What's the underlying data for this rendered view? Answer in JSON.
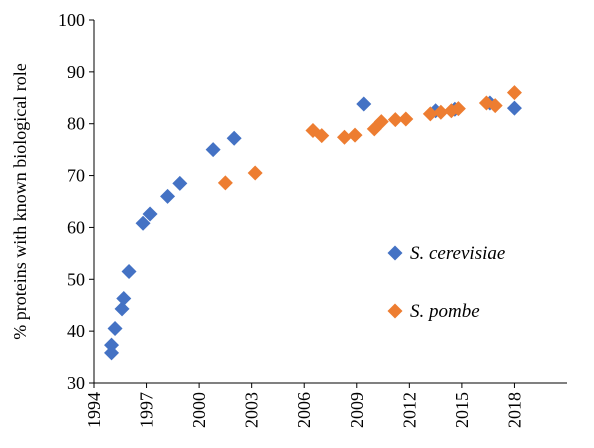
{
  "chart_data": {
    "type": "scatter",
    "title": "",
    "xlabel": "",
    "ylabel": "% proteins with known biological role",
    "xlim": [
      1994,
      2021
    ],
    "ylim": [
      30,
      100
    ],
    "x_ticks": [
      1994,
      1997,
      2000,
      2003,
      2006,
      2009,
      2012,
      2015,
      2018
    ],
    "x_tick_labels": [
      "1994",
      "1997",
      "2000",
      "2003",
      "2006",
      "2009",
      "2012",
      "2015",
      "2018"
    ],
    "y_ticks": [
      30,
      40,
      50,
      60,
      70,
      80,
      90,
      100
    ],
    "y_tick_labels": [
      "30",
      "40",
      "50",
      "60",
      "70",
      "80",
      "90",
      "100"
    ],
    "grid": false,
    "legend_position": "right",
    "series": [
      {
        "name": "S. cerevisiae",
        "color": "#4472c4",
        "marker": "diamond",
        "points": [
          {
            "x": 1995.0,
            "y": 35.8
          },
          {
            "x": 1995.0,
            "y": 37.3
          },
          {
            "x": 1995.2,
            "y": 40.5
          },
          {
            "x": 1995.6,
            "y": 44.3
          },
          {
            "x": 1995.7,
            "y": 46.3
          },
          {
            "x": 1996.0,
            "y": 51.5
          },
          {
            "x": 1996.8,
            "y": 60.8
          },
          {
            "x": 1997.2,
            "y": 62.6
          },
          {
            "x": 1998.2,
            "y": 66.0
          },
          {
            "x": 1998.9,
            "y": 68.5
          },
          {
            "x": 2000.8,
            "y": 75.0
          },
          {
            "x": 2002.0,
            "y": 77.2
          },
          {
            "x": 2009.4,
            "y": 83.8
          },
          {
            "x": 2013.5,
            "y": 82.5
          },
          {
            "x": 2014.6,
            "y": 82.8
          },
          {
            "x": 2016.6,
            "y": 84.0
          },
          {
            "x": 2018.0,
            "y": 83.0
          }
        ]
      },
      {
        "name": "S. pombe",
        "color": "#ed7d31",
        "marker": "diamond",
        "points": [
          {
            "x": 2001.5,
            "y": 68.6
          },
          {
            "x": 2003.2,
            "y": 70.5
          },
          {
            "x": 2006.5,
            "y": 78.7
          },
          {
            "x": 2007.0,
            "y": 77.7
          },
          {
            "x": 2008.3,
            "y": 77.4
          },
          {
            "x": 2008.9,
            "y": 77.8
          },
          {
            "x": 2010.0,
            "y": 79.0
          },
          {
            "x": 2010.4,
            "y": 80.4
          },
          {
            "x": 2011.2,
            "y": 80.8
          },
          {
            "x": 2011.8,
            "y": 80.9
          },
          {
            "x": 2013.2,
            "y": 81.9
          },
          {
            "x": 2013.8,
            "y": 82.2
          },
          {
            "x": 2014.4,
            "y": 82.5
          },
          {
            "x": 2014.8,
            "y": 82.9
          },
          {
            "x": 2016.4,
            "y": 84.0
          },
          {
            "x": 2016.9,
            "y": 83.5
          },
          {
            "x": 2018.0,
            "y": 86.0
          }
        ]
      }
    ]
  }
}
